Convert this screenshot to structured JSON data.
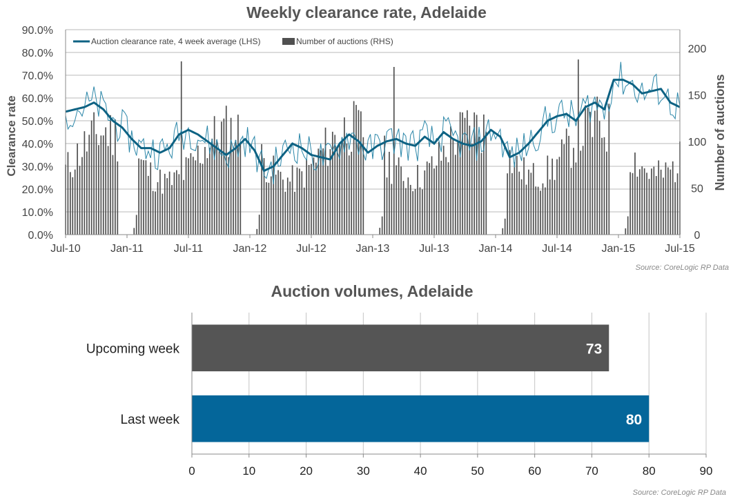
{
  "chart_data": [
    {
      "type": "bar+line",
      "title": "Weekly clearance  rate, Adelaide",
      "ylabel": "Clearance rate",
      "y2label": "Number of auctions",
      "ylim": [
        0,
        90
      ],
      "y2lim": [
        0,
        220
      ],
      "yticks": [
        "0.0%",
        "10.0%",
        "20.0%",
        "30.0%",
        "40.0%",
        "50.0%",
        "60.0%",
        "70.0%",
        "80.0%",
        "90.0%"
      ],
      "y2ticks": [
        "0",
        "50",
        "100",
        "150",
        "200"
      ],
      "xticks": [
        "Jul-10",
        "Jan-11",
        "Jul-11",
        "Jan-12",
        "Jul-12",
        "Jan-13",
        "Jul-13",
        "Jan-14",
        "Jul-14",
        "Jan-15",
        "Jul-15"
      ],
      "x_start": "2010-07",
      "weeks": 261,
      "grid": true,
      "legend_position": "top-left",
      "source": "Source: CoreLogic  RP Data",
      "series": [
        {
          "name": "Auction clearance rate, 4 week average (LHS)",
          "kind": "line",
          "axis": "left",
          "color": "#0d6283",
          "points": [
            [
              0,
              54
            ],
            [
              4,
              55
            ],
            [
              8,
              56
            ],
            [
              12,
              58
            ],
            [
              16,
              55
            ],
            [
              20,
              50
            ],
            [
              24,
              47
            ],
            [
              28,
              42
            ],
            [
              32,
              38
            ],
            [
              36,
              38
            ],
            [
              40,
              36
            ],
            [
              44,
              38
            ],
            [
              48,
              44
            ],
            [
              52,
              46
            ],
            [
              56,
              44
            ],
            [
              60,
              41
            ],
            [
              64,
              38
            ],
            [
              68,
              35
            ],
            [
              72,
              38
            ],
            [
              76,
              42
            ],
            [
              80,
              37
            ],
            [
              84,
              28
            ],
            [
              88,
              30
            ],
            [
              92,
              35
            ],
            [
              96,
              40
            ],
            [
              100,
              38
            ],
            [
              104,
              35
            ],
            [
              108,
              34
            ],
            [
              112,
              33
            ],
            [
              116,
              40
            ],
            [
              120,
              44
            ],
            [
              124,
              41
            ],
            [
              128,
              36
            ],
            [
              132,
              39
            ],
            [
              136,
              41
            ],
            [
              140,
              42
            ],
            [
              144,
              40
            ],
            [
              148,
              39
            ],
            [
              152,
              43
            ],
            [
              156,
              40
            ],
            [
              160,
              45
            ],
            [
              164,
              42
            ],
            [
              168,
              40
            ],
            [
              172,
              39
            ],
            [
              176,
              41
            ],
            [
              180,
              46
            ],
            [
              184,
              43
            ],
            [
              188,
              34
            ],
            [
              192,
              36
            ],
            [
              196,
              40
            ],
            [
              200,
              45
            ],
            [
              204,
              50
            ],
            [
              208,
              52
            ],
            [
              212,
              53
            ],
            [
              216,
              50
            ],
            [
              220,
              56
            ],
            [
              224,
              58
            ],
            [
              228,
              55
            ],
            [
              232,
              68
            ],
            [
              236,
              68
            ],
            [
              240,
              66
            ],
            [
              244,
              62
            ],
            [
              248,
              63
            ],
            [
              252,
              64
            ],
            [
              256,
              58
            ],
            [
              260,
              56
            ]
          ]
        },
        {
          "name": "Number of auctions (RHS)",
          "kind": "bar",
          "axis": "right",
          "color": "#505050"
        }
      ]
    },
    {
      "type": "bar",
      "orientation": "horizontal",
      "title": "Auction volumes, Adelaide",
      "categories": [
        "Upcoming week",
        "Last week"
      ],
      "values": [
        73,
        80
      ],
      "colors": [
        "#555555",
        "#04669a"
      ],
      "xlim": [
        0,
        90
      ],
      "xticks": [
        "0",
        "10",
        "20",
        "30",
        "40",
        "50",
        "60",
        "70",
        "80",
        "90"
      ],
      "grid": true,
      "source": "Source: CoreLogic  RP Data"
    }
  ]
}
